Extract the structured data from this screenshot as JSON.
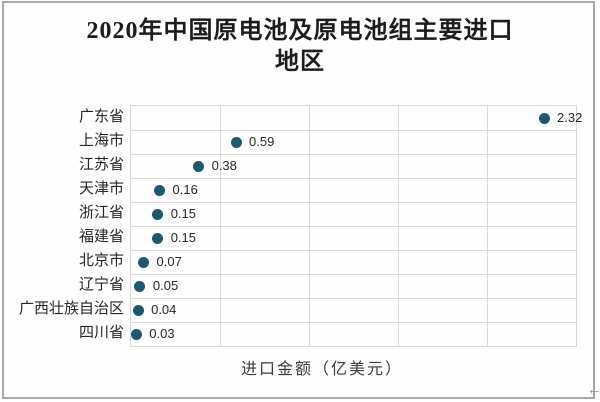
{
  "header": {
    "title_line1": "2020年中国原电池及原电池组主要进口",
    "title_line2": "地区"
  },
  "chart_data": {
    "type": "scatter",
    "orientation": "horizontal-dot",
    "title": "2020年中国原电池及原电池组主要进口地区",
    "xlabel": "进口金额（亿美元）",
    "categories": [
      "广东省",
      "上海市",
      "江苏省",
      "天津市",
      "浙江省",
      "福建省",
      "北京市",
      "辽宁省",
      "广西壮族自治区",
      "四川省"
    ],
    "values": [
      2.32,
      0.59,
      0.38,
      0.16,
      0.15,
      0.15,
      0.07,
      0.05,
      0.04,
      0.03
    ],
    "value_labels": [
      "2.32",
      "0.59",
      "0.38",
      "0.16",
      "0.15",
      "0.15",
      "0.07",
      "0.05",
      "0.04",
      "0.03"
    ],
    "xlim": [
      0,
      2.5
    ],
    "x_grid_step": 0.5,
    "grid": true,
    "legend": false,
    "x_tick_labels_visible": false,
    "marker": "circle",
    "colors": {
      "marker": "#1b5872",
      "gridline": "#d9d9d9",
      "text": "#262626",
      "frame_border": "#a5a5ab"
    }
  },
  "decorations": {
    "left_arrow": "←"
  }
}
